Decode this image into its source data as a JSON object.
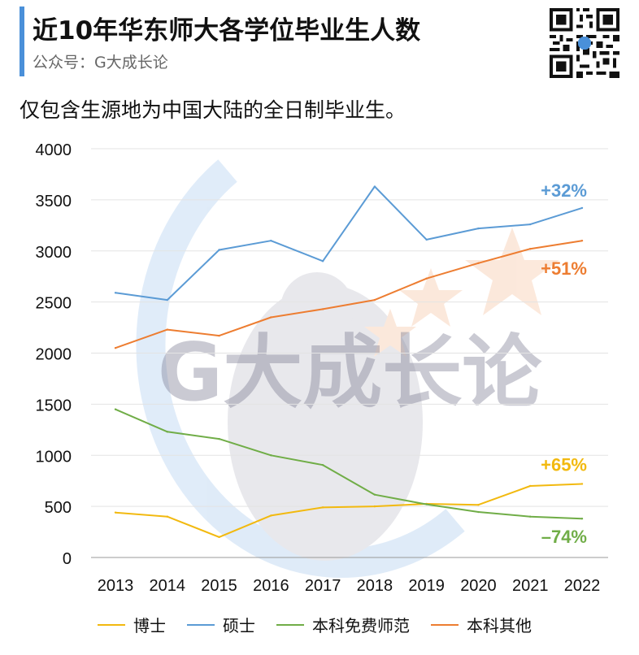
{
  "header": {
    "title": "近10年华东师大各学位毕业生人数",
    "subtitle": "公众号：G大成长论",
    "note": "仅包含生源地为中国大陆的全日制毕业生。"
  },
  "watermark_text": "G大成长论",
  "colors": {
    "accent": "#4a90d9",
    "grid": "#e3e3e3",
    "axis": "#999999"
  },
  "chart_data": {
    "type": "line",
    "title": "近10年华东师大各学位毕业生人数",
    "xlabel": "",
    "ylabel": "",
    "categories": [
      "2013",
      "2014",
      "2015",
      "2016",
      "2017",
      "2018",
      "2019",
      "2020",
      "2021",
      "2022"
    ],
    "ylim": [
      0,
      4000
    ],
    "yticks": [
      0,
      500,
      1000,
      1500,
      2000,
      2500,
      3000,
      3500,
      4000
    ],
    "grid": true,
    "legend_position": "bottom",
    "series": [
      {
        "name": "博士",
        "color": "#f2b90f",
        "values": [
          440,
          400,
          200,
          410,
          490,
          500,
          525,
          515,
          700,
          720
        ],
        "annotation": "+65%"
      },
      {
        "name": "硕士",
        "color": "#5b9bd5",
        "values": [
          2590,
          2520,
          3010,
          3100,
          2900,
          3630,
          3110,
          3220,
          3260,
          3420
        ],
        "annotation": "+32%"
      },
      {
        "name": "本科免费师范",
        "color": "#70ad47",
        "values": [
          1450,
          1230,
          1160,
          1000,
          905,
          615,
          520,
          445,
          400,
          380
        ],
        "annotation": "–74%"
      },
      {
        "name": "本科其他",
        "color": "#ed7d31",
        "values": [
          2050,
          2230,
          2170,
          2350,
          2430,
          2520,
          2730,
          2880,
          3020,
          3100
        ],
        "annotation": "+51%"
      }
    ]
  }
}
